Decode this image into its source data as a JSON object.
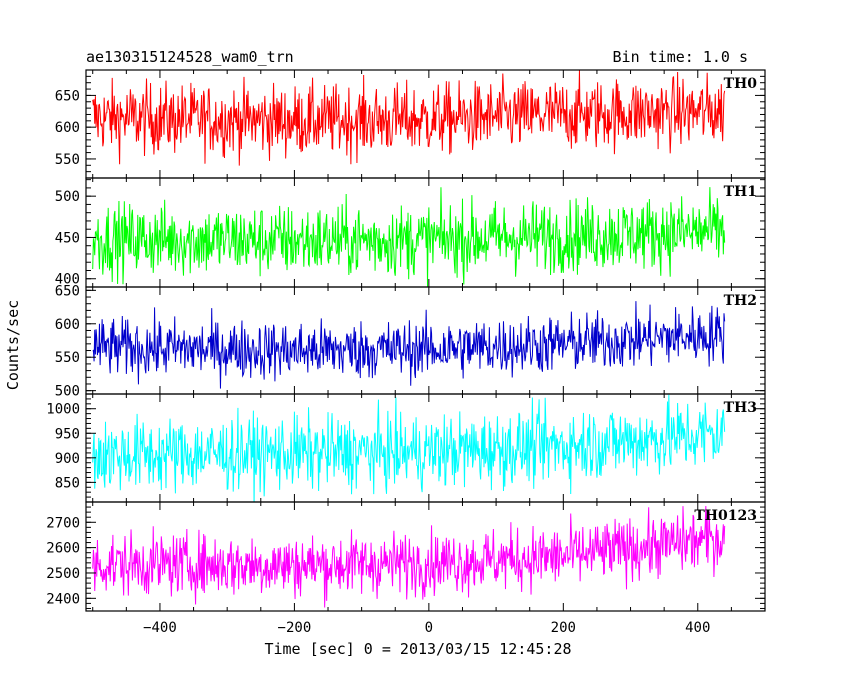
{
  "header": {
    "title": "ae130315124528_wam0_trn",
    "bin_time": "Bin time: 1.0 s"
  },
  "chart_data": {
    "type": "line",
    "title": "ae130315124528_wam0_trn",
    "subtitle": "Bin time: 1.0 s",
    "xlabel": "Time [sec] 0 = 2013/03/15 12:45:28",
    "ylabel": "Counts/sec",
    "xlim": [
      -510,
      500
    ],
    "x_range_data": [
      -500,
      440
    ],
    "x_ticks": [
      -400,
      -200,
      0,
      200,
      400
    ],
    "grid": false,
    "panels": [
      {
        "name": "TH0",
        "color": "#ff0000",
        "ylim": [
          520,
          690
        ],
        "y_ticks": [
          550,
          600,
          650
        ],
        "y_labels": [
          "550",
          "600",
          "650"
        ],
        "trend": [
          [
            -500,
            615
          ],
          [
            -200,
            610
          ],
          [
            0,
            612
          ],
          [
            200,
            620
          ],
          [
            440,
            625
          ]
        ],
        "spread": 28
      },
      {
        "name": "TH1",
        "color": "#00ff00",
        "ylim": [
          390,
          522
        ],
        "y_ticks": [
          400,
          450,
          500
        ],
        "y_labels": [
          "400",
          "450",
          "500"
        ],
        "trend": [
          [
            -500,
            448
          ],
          [
            -200,
            446
          ],
          [
            0,
            447
          ],
          [
            200,
            452
          ],
          [
            440,
            458
          ]
        ],
        "spread": 22
      },
      {
        "name": "TH2",
        "color": "#0000cc",
        "ylim": [
          495,
          655
        ],
        "y_ticks": [
          500,
          550,
          600,
          650
        ],
        "y_labels": [
          "500",
          "550",
          "600",
          "650"
        ],
        "trend": [
          [
            -500,
            565
          ],
          [
            -200,
            560
          ],
          [
            0,
            562
          ],
          [
            200,
            570
          ],
          [
            440,
            585
          ]
        ],
        "spread": 22
      },
      {
        "name": "TH3",
        "color": "#00ffff",
        "ylim": [
          810,
          1030
        ],
        "y_ticks": [
          850,
          900,
          950,
          1000
        ],
        "y_labels": [
          "850",
          "900",
          "950",
          "1000"
        ],
        "trend": [
          [
            -500,
            905
          ],
          [
            -200,
            910
          ],
          [
            0,
            912
          ],
          [
            200,
            925
          ],
          [
            440,
            950
          ]
        ],
        "spread": 38
      },
      {
        "name": "TH0123",
        "color": "#ff00ff",
        "ylim": [
          2350,
          2780
        ],
        "y_ticks": [
          2400,
          2500,
          2600,
          2700
        ],
        "y_labels": [
          "2400",
          "2500",
          "2600",
          "2700"
        ],
        "trend": [
          [
            -500,
            2535
          ],
          [
            -200,
            2530
          ],
          [
            0,
            2540
          ],
          [
            200,
            2565
          ],
          [
            440,
            2640
          ]
        ],
        "spread": 62
      }
    ]
  }
}
